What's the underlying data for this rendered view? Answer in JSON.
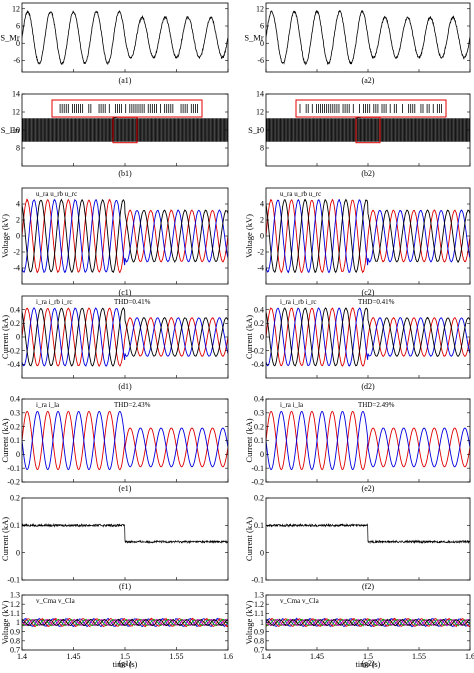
{
  "figure": {
    "x_axis": {
      "label": "time (s)",
      "range": [
        1.4,
        1.6
      ],
      "ticks": [
        "1.4",
        "1.45",
        "1.5",
        "1.55",
        "1.6"
      ]
    },
    "rows": [
      {
        "key": "a",
        "ylabel": [
          "S_Mr",
          "S_Mr"
        ],
        "ylim": [
          -10,
          14
        ],
        "yticks": [
          "12",
          "6",
          "0",
          "-6"
        ],
        "captions": [
          "(a1)",
          "(a2)"
        ]
      },
      {
        "key": "b",
        "ylabel": [
          "S_En",
          "S_r"
        ],
        "ylim": [
          6,
          14
        ],
        "yticks": [
          "14",
          "12",
          "10",
          "8"
        ],
        "captions": [
          "(b1)",
          "(b2)"
        ]
      },
      {
        "key": "c",
        "ylabel": [
          "Voltage (kV)",
          "Voltage (kV)"
        ],
        "ylim": [
          -6,
          6
        ],
        "yticks": [
          "4",
          "2",
          "0",
          "-2",
          "-4"
        ],
        "captions": [
          "(c1)",
          "(c2)"
        ],
        "annotation": "u_ra u_rb u_rc"
      },
      {
        "key": "d",
        "ylabel": [
          "Current (kA)",
          "Current (kA)"
        ],
        "ylim": [
          -0.6,
          0.6
        ],
        "yticks": [
          "0.4",
          "0.2",
          "0",
          "-0.2",
          "-0.4"
        ],
        "captions": [
          "(d1)",
          "(d2)"
        ],
        "annotation": "i_ra i_rb i_rc",
        "thd": [
          "THD=0.41%",
          "THD=0.41%"
        ]
      },
      {
        "key": "e",
        "ylabel": [
          "Current (kA)",
          "Current (kA)"
        ],
        "ylim": [
          -0.2,
          0.4
        ],
        "yticks": [
          "0.4",
          "0.3",
          "0.2",
          "0.1",
          "0",
          "-0.1",
          "-0.2"
        ],
        "captions": [
          "(e1)",
          "(e2)"
        ],
        "annotation": "i_ra i_la",
        "thd": [
          "THD=2.43%",
          "THD=2.49%"
        ]
      },
      {
        "key": "f",
        "ylabel": [
          "Current (kA)",
          "Current (kA)"
        ],
        "ylim": [
          -0.1,
          0.2
        ],
        "yticks": [
          "0.2",
          "0.1",
          "0",
          "-0.1"
        ],
        "captions": [
          "(f1)",
          "(f2)"
        ]
      },
      {
        "key": "g",
        "ylabel": [
          "Voltage (kV)",
          "Voltage (kV)"
        ],
        "ylim": [
          0.7,
          1.3
        ],
        "yticks": [
          "1.3",
          "1.2",
          "1.1",
          "1",
          "0.9",
          "0.8",
          "0.7"
        ],
        "captions": [
          "(g1)",
          "(g2)"
        ],
        "annotation": "v_Cma v_Cla"
      }
    ]
  },
  "chart_data": {
    "type": "line",
    "x_step_time_s": 1.5,
    "panels": [
      {
        "id": "a",
        "series": [
          {
            "amplitude_before": 9,
            "amplitude_after": 7,
            "offset": 2,
            "cycles": 9
          }
        ]
      },
      {
        "id": "b",
        "series": [
          {
            "level_low": 8.7,
            "level_high": 11.3,
            "type": "switching"
          }
        ]
      },
      {
        "id": "c",
        "series": [
          {
            "phase": "a",
            "amplitude_before": 4.5,
            "amplitude_after": 3.2,
            "color": "#e00000"
          },
          {
            "phase": "b",
            "amplitude_before": 4.5,
            "amplitude_after": 3.2,
            "color": "#0000e0"
          },
          {
            "phase": "c",
            "amplitude_before": 4.5,
            "amplitude_after": 3.2,
            "color": "#000000"
          }
        ]
      },
      {
        "id": "d",
        "series": [
          {
            "phase": "a",
            "amplitude_before": 0.42,
            "amplitude_after": 0.28,
            "color": "#e00000"
          },
          {
            "phase": "b",
            "amplitude_before": 0.42,
            "amplitude_after": 0.28,
            "color": "#0000e0"
          },
          {
            "phase": "c",
            "amplitude_before": 0.42,
            "amplitude_after": 0.28,
            "color": "#000000"
          }
        ]
      },
      {
        "id": "e",
        "series": [
          {
            "name": "i_ra",
            "offset_before": 0.1,
            "amplitude_before": 0.21,
            "offset_after": 0.05,
            "amplitude_after": 0.14,
            "color": "#e00000"
          },
          {
            "name": "i_la",
            "offset_before": 0.1,
            "amplitude_before": 0.21,
            "offset_after": 0.05,
            "amplitude_after": 0.14,
            "color": "#0000e0"
          }
        ]
      },
      {
        "id": "f",
        "series": [
          {
            "level_before": 0.1,
            "level_after": 0.04,
            "color": "#000000"
          }
        ]
      },
      {
        "id": "g",
        "series": [
          {
            "center": 1.0,
            "ripple": 0.04,
            "color": "#0000e0"
          },
          {
            "center": 1.0,
            "ripple": 0.04,
            "color": "#e00000"
          },
          {
            "center": 1.0,
            "ripple": 0.03,
            "color": "#00a000"
          },
          {
            "center": 1.0,
            "ripple": 0.03,
            "color": "#c000c0"
          },
          {
            "center": 1.0,
            "ripple": 0.03,
            "color": "#000000"
          }
        ]
      }
    ]
  }
}
